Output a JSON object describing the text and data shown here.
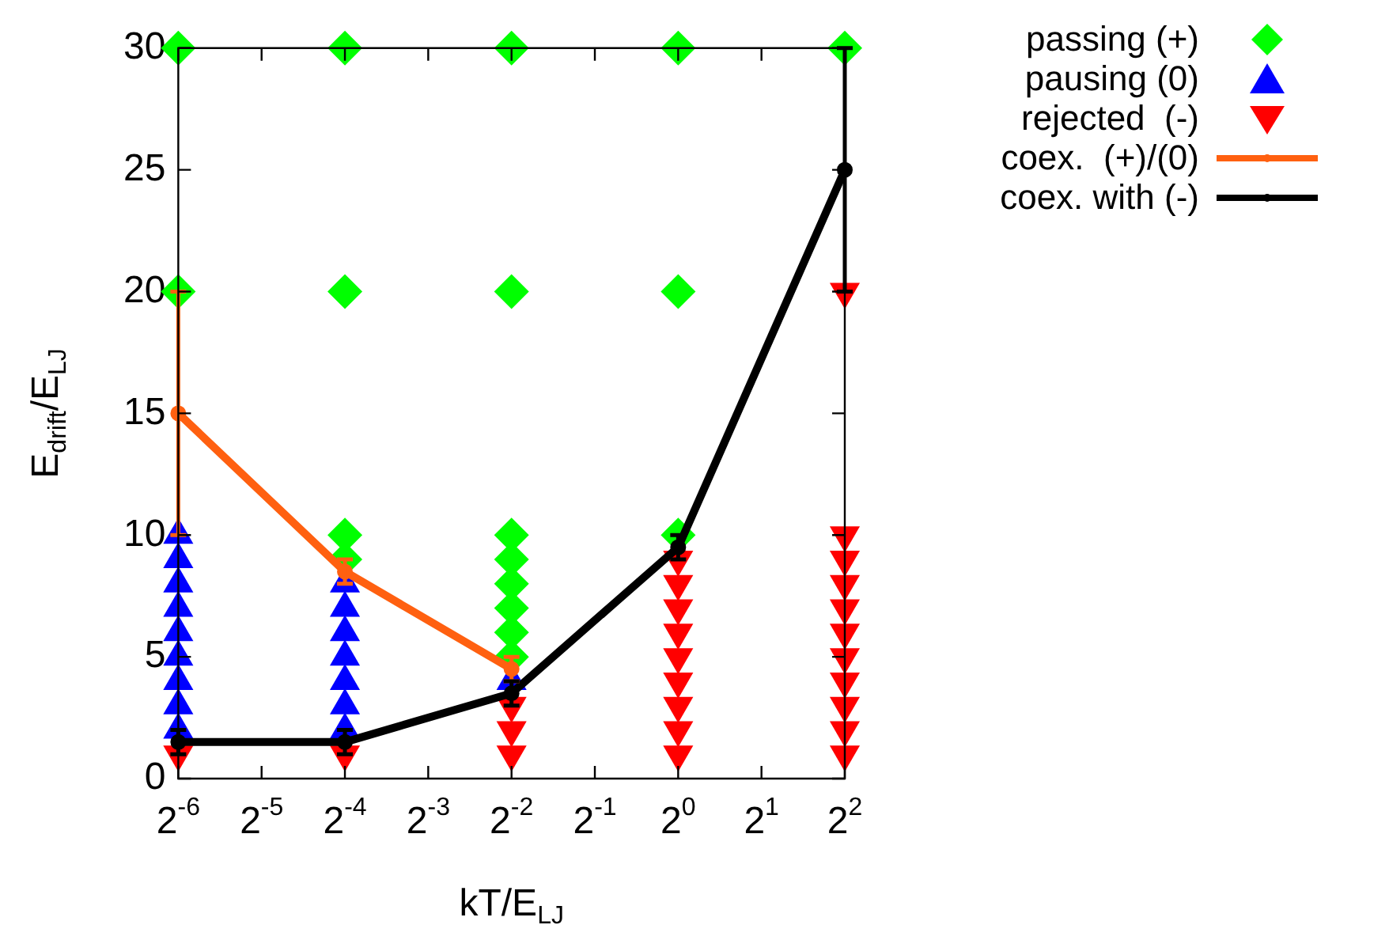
{
  "chart_data": {
    "type": "scatter",
    "xlabel": "kT/E$_{LJ}$",
    "ylabel": "E$_{drift}$/E$_{LJ}$",
    "log": "x",
    "xlim": [
      0.015625,
      4
    ],
    "xticks": [
      {
        "value": 0.015625,
        "label": "2$^{-6}$"
      },
      {
        "value": 0.03125,
        "label": "2$^{-5}$"
      },
      {
        "value": 0.0625,
        "label": "2$^{-4}$"
      },
      {
        "value": 0.125,
        "label": "2$^{-3}$"
      },
      {
        "value": 0.25,
        "label": "2$^{-2}$"
      },
      {
        "value": 0.5,
        "label": "2$^{-1}$"
      },
      {
        "value": 1,
        "label": "2$^{0}$"
      },
      {
        "value": 2,
        "label": "2$^{1}$"
      },
      {
        "value": 4,
        "label": "2$^{2}$"
      }
    ],
    "ylim": [
      0,
      30
    ],
    "yticks": [
      0,
      5,
      10,
      15,
      20,
      25,
      30
    ],
    "grid": false,
    "legend": "top right",
    "series": [
      {
        "name": "passing (+)",
        "marker": "diamond",
        "color": "#00ff00",
        "x": [
          0.015625,
          0.015625,
          0.0625,
          0.0625,
          0.0625,
          0.0625,
          0.25,
          0.25,
          0.25,
          0.25,
          0.25,
          0.25,
          0.25,
          0.25,
          1,
          1,
          1,
          4
        ],
        "values": [
          30,
          20,
          30,
          20,
          10,
          9,
          30,
          20,
          10,
          9,
          8,
          7,
          6,
          5,
          30,
          20,
          10,
          30
        ]
      },
      {
        "name": "pausing (0)",
        "marker": "triangle",
        "color": "#0000ff",
        "x": [
          0.015625,
          0.015625,
          0.015625,
          0.015625,
          0.015625,
          0.015625,
          0.015625,
          0.015625,
          0.015625,
          0.0625,
          0.0625,
          0.0625,
          0.0625,
          0.0625,
          0.0625,
          0.0625,
          0.25
        ],
        "values": [
          2,
          3,
          4,
          5,
          6,
          7,
          8,
          9,
          10,
          2,
          3,
          4,
          5,
          6,
          7,
          8,
          4
        ]
      },
      {
        "name": "rejected  (-)",
        "marker": "triangle-down",
        "color": "#ff0000",
        "x": [
          0.015625,
          0.0625,
          0.25,
          0.25,
          0.25,
          1,
          1,
          1,
          1,
          1,
          1,
          1,
          1,
          1,
          4,
          4,
          4,
          4,
          4,
          4,
          4,
          4,
          4,
          4,
          4
        ],
        "values": [
          1,
          1,
          1,
          2,
          3,
          1,
          2,
          3,
          4,
          5,
          6,
          7,
          8,
          9,
          1,
          2,
          3,
          4,
          5,
          6,
          7,
          8,
          9,
          10,
          20
        ]
      },
      {
        "name": "coex.  (+)/(0)",
        "type": "line",
        "marker": "circle",
        "color": "#ff6010",
        "x": [
          0.015625,
          0.0625,
          0.25
        ],
        "values": [
          15,
          8.5,
          4.5
        ],
        "errors": [
          [
            10,
            20
          ],
          [
            8,
            9
          ],
          [
            4,
            5
          ]
        ]
      },
      {
        "name": "coex. with (-)",
        "type": "line",
        "marker": "circle",
        "color": "#000000",
        "x": [
          0.015625,
          0.0625,
          0.25,
          1,
          4
        ],
        "values": [
          1.5,
          1.5,
          3.5,
          9.5,
          25
        ],
        "errors": [
          [
            1,
            2
          ],
          [
            1,
            2
          ],
          [
            3,
            4
          ],
          [
            9,
            10
          ],
          [
            20,
            30
          ]
        ]
      }
    ]
  }
}
